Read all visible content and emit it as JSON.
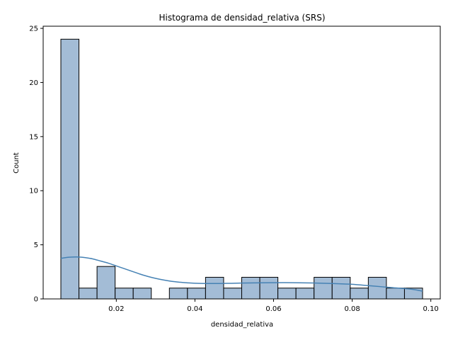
{
  "chart_data": {
    "type": "bar",
    "title": "Histograma de densidad_relativa (SRS)",
    "xlabel": "densidad_relativa",
    "ylabel": "Count",
    "xlim": [
      0.0014,
      0.1024
    ],
    "ylim": [
      0,
      25.2
    ],
    "xticks": [
      0.02,
      0.04,
      0.06,
      0.08,
      0.1
    ],
    "xtick_labels": [
      "0.02",
      "0.04",
      "0.06",
      "0.08",
      "0.10"
    ],
    "yticks": [
      0,
      5,
      10,
      15,
      20,
      25
    ],
    "ytick_labels": [
      "0",
      "5",
      "10",
      "15",
      "20",
      "25"
    ],
    "bin_width": 0.0046,
    "bins": [
      {
        "start": 0.0059,
        "count": 24
      },
      {
        "start": 0.0105,
        "count": 1
      },
      {
        "start": 0.0151,
        "count": 3
      },
      {
        "start": 0.0197,
        "count": 1
      },
      {
        "start": 0.0243,
        "count": 1
      },
      {
        "start": 0.0335,
        "count": 1
      },
      {
        "start": 0.0381,
        "count": 1
      },
      {
        "start": 0.0427,
        "count": 2
      },
      {
        "start": 0.0473,
        "count": 1
      },
      {
        "start": 0.0519,
        "count": 2
      },
      {
        "start": 0.0565,
        "count": 2
      },
      {
        "start": 0.0611,
        "count": 1
      },
      {
        "start": 0.0657,
        "count": 1
      },
      {
        "start": 0.0703,
        "count": 2
      },
      {
        "start": 0.0749,
        "count": 2
      },
      {
        "start": 0.0795,
        "count": 1
      },
      {
        "start": 0.0841,
        "count": 2
      },
      {
        "start": 0.0887,
        "count": 1
      },
      {
        "start": 0.0933,
        "count": 1
      }
    ],
    "kde": {
      "x": [
        0.0059,
        0.008,
        0.01,
        0.012,
        0.014,
        0.016,
        0.018,
        0.02,
        0.022,
        0.024,
        0.026,
        0.028,
        0.03,
        0.032,
        0.034,
        0.036,
        0.038,
        0.04,
        0.045,
        0.05,
        0.055,
        0.06,
        0.065,
        0.07,
        0.075,
        0.08,
        0.085,
        0.09,
        0.095,
        0.0979
      ],
      "y": [
        3.75,
        3.85,
        3.88,
        3.82,
        3.7,
        3.5,
        3.3,
        3.05,
        2.8,
        2.55,
        2.3,
        2.08,
        1.9,
        1.75,
        1.63,
        1.55,
        1.49,
        1.45,
        1.42,
        1.45,
        1.48,
        1.5,
        1.5,
        1.47,
        1.42,
        1.35,
        1.2,
        1.05,
        0.9,
        0.72
      ]
    },
    "colors": {
      "bar_fill": "#a3bcd6",
      "bar_edge": "#000000",
      "kde_line": "#4682b4"
    },
    "grid": false,
    "legend": "none"
  }
}
